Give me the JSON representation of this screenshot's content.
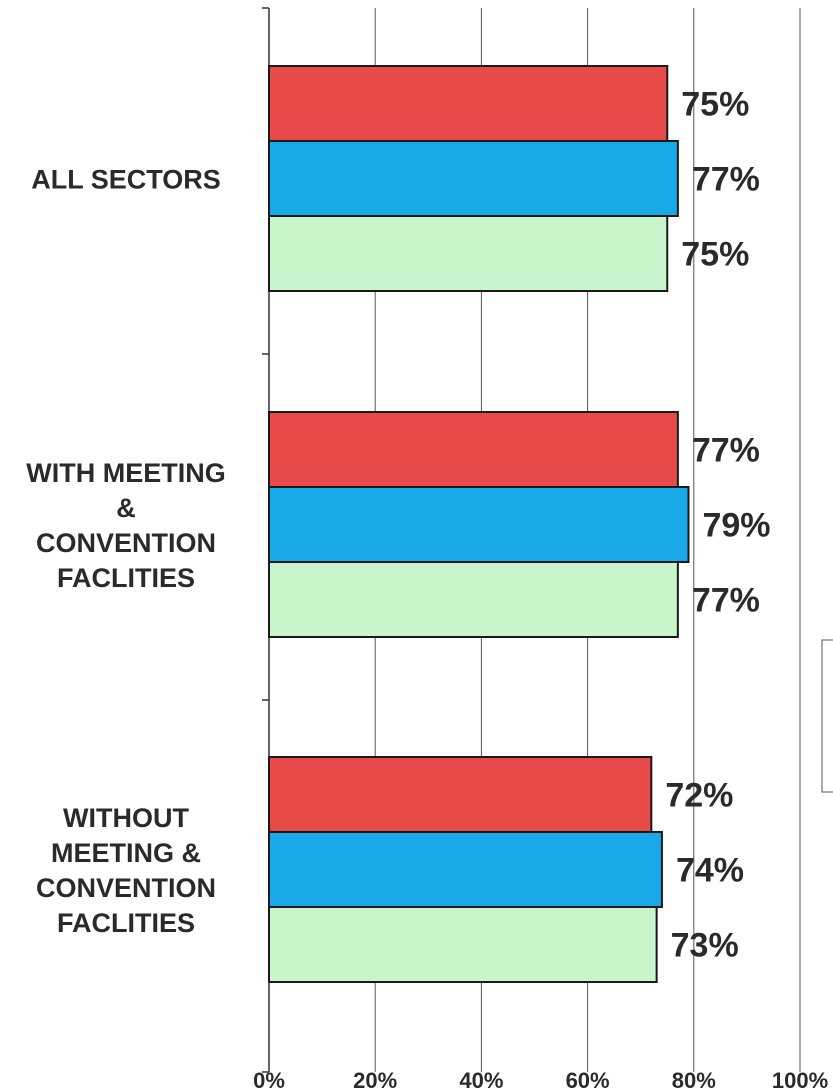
{
  "chart_data": {
    "type": "bar",
    "orientation": "horizontal",
    "title": "",
    "xlabel": "",
    "ylabel": "",
    "categories": [
      [
        "ALL SECTORS"
      ],
      [
        "WITH MEETING",
        "&",
        "CONVENTION",
        "FACLITIES"
      ],
      [
        "WITHOUT",
        "MEETING &",
        "CONVENTION",
        "FACLITIES"
      ]
    ],
    "series": [
      {
        "color": "#e84a4a",
        "values": [
          75,
          77,
          72
        ],
        "labels": [
          "75%",
          "77%",
          "72%"
        ]
      },
      {
        "color": "#1aa9e8",
        "values": [
          77,
          79,
          74
        ],
        "labels": [
          "77%",
          "79%",
          "74%"
        ]
      },
      {
        "color": "#c8f5cc",
        "values": [
          75,
          77,
          73
        ],
        "labels": [
          "75%",
          "77%",
          "73%"
        ]
      }
    ],
    "xlim": [
      0,
      100
    ],
    "xticks": [
      "0%",
      "20%",
      "40%",
      "60%",
      "80%",
      "100%"
    ],
    "grid": true,
    "legend": "right, partially cropped"
  }
}
